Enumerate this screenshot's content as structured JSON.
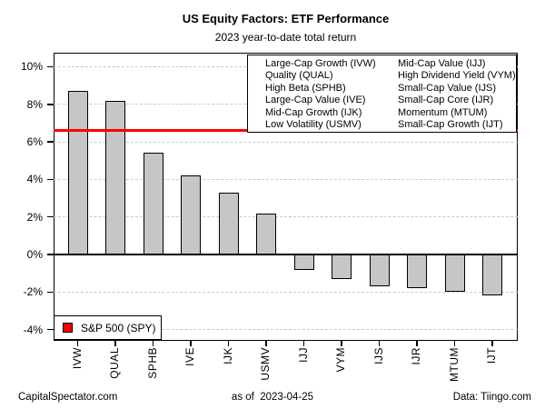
{
  "title": "US Equity Factors: ETF Performance",
  "subtitle": "2023 year-to-date total return",
  "chart_data": {
    "type": "bar",
    "title": "US Equity Factors: ETF Performance",
    "subtitle": "2023 year-to-date total return",
    "categories": [
      "IVW",
      "QUAL",
      "SPHB",
      "IVE",
      "IJK",
      "USMV",
      "IJJ",
      "VYM",
      "IJS",
      "IJR",
      "MTUM",
      "IJT"
    ],
    "values": [
      8.7,
      8.2,
      5.4,
      4.2,
      3.3,
      2.2,
      -0.8,
      -1.3,
      -1.7,
      -1.8,
      -2.0,
      -2.2
    ],
    "value_unit": "%",
    "ylim": [
      -4.6,
      10.75
    ],
    "yticks": [
      10,
      8,
      6,
      4,
      2,
      0,
      -2,
      -4
    ],
    "ytick_labels": [
      "10%",
      "8%",
      "6%",
      "4%",
      "2%",
      "0%",
      "-2%",
      "-4%"
    ],
    "grid": "horizontal-dashed",
    "bar_color": "#c6c6c6",
    "bar_border_color": "#000000",
    "reference_line": {
      "value": 6.6,
      "color": "#ff0000",
      "label": "S&P 500 (SPY)"
    },
    "legend_position": "top-right",
    "legend_columns": [
      [
        "Large-Cap Growth (IVW)",
        "Quality (QUAL)",
        "High Beta (SPHB)",
        "Large-Cap Value (IVE)",
        "Mid-Cap Growth (IJK)",
        "Low Volatility (USMV)"
      ],
      [
        "Mid-Cap Value (IJJ)",
        "High Dividend Yield (VYM)",
        "Small-Cap Value (IJS)",
        "Small-Cap Core (IJR)",
        "Momentum (MTUM)",
        "Small-Cap Growth (IJT)"
      ]
    ]
  },
  "footer": {
    "left": "CapitalSpectator.com",
    "center": "as of  2023-04-25",
    "right": "Data: Tiingo.com"
  }
}
